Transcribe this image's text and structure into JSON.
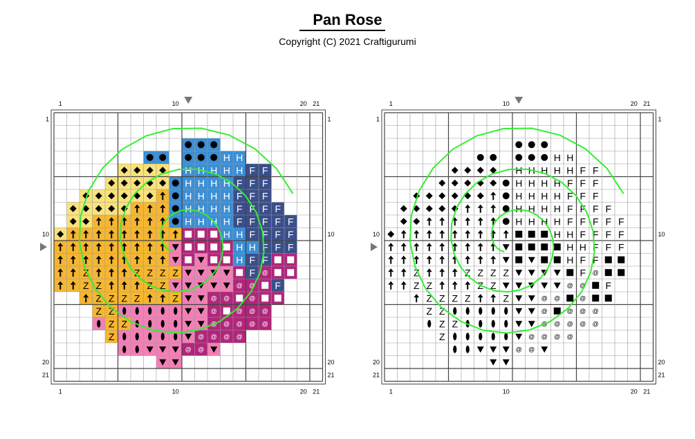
{
  "title": "Pan Rose",
  "copyright": "Copyright (C) 2021 Craftigurumi",
  "axis_labels": {
    "first": "1",
    "mid": "10",
    "last": "20",
    "end": "21"
  },
  "colors": {
    "yellow": "#f9e27a",
    "orange": "#f5b630",
    "blue": "#3b8fd6",
    "navy": "#3a4f8a",
    "magenta": "#b0267a",
    "pink": "#f27fb5",
    "light_pink": "#f4a6cc",
    "outline": "#33ee33",
    "grid": "#9a9a9a",
    "grid_major": "#444444"
  },
  "legend_symbols": {
    "D": "diamond",
    "A": "up-arrow",
    "Z": "Z",
    "O": "oval",
    "C": "filled-circle",
    "H": "H",
    "F": "F",
    "S": "square",
    "T": "down-triangle",
    "@": "at-sign"
  },
  "pattern": [
    "",
    "",
    "..........CCC",
    ".......CC.CCCHH",
    ".....DDDD.HHHHHFF",
    "....DDDDDCHHHHFFF",
    "..DDDDDDACHHHHFFF",
    ".DDDDDAAACHHHHFFFF",
    ".DDAAAAAACHHHHFFFFF",
    "DAAAAAAAAASSSHHFFFF",
    "AAAAAAAAATSSSSHHFFF",
    "AAAAAAAAATSTSSHFFSS",
    "AAZAAAZZZZTTTTSF@SS",
    "AAZZAAAZZTTTTT@@SF",
    "..AZZZZAAZTT@@S@SS",
    "...ZZOOOOOTT@S@@@",
    "...OZZOOOOTT@@@@@",
    "....ZOOOOOT@@@@",
    ".....OOTTT@@T",
    "........TT",
    ""
  ]
}
